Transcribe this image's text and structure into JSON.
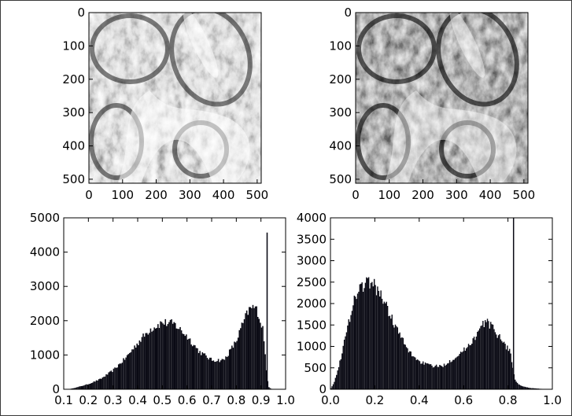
{
  "figure": {
    "background": "#ffffff",
    "frame_color": "#3a3a3a"
  },
  "images": [
    {
      "name": "original-tissue-image",
      "description_shown": false,
      "xlim": [
        0,
        512
      ],
      "ylim": [
        512,
        0
      ],
      "xticks": [
        "0",
        "100",
        "200",
        "300",
        "400",
        "500"
      ],
      "yticks": [
        "0",
        "100",
        "200",
        "300",
        "400",
        "500"
      ],
      "colormap": "gray"
    },
    {
      "name": "processed-tissue-image",
      "xlim": [
        0,
        512
      ],
      "ylim": [
        512,
        0
      ],
      "xticks": [
        "0",
        "100",
        "200",
        "300",
        "400",
        "500"
      ],
      "yticks": [
        "0",
        "100",
        "200",
        "300",
        "400",
        "500"
      ],
      "colormap": "gray"
    }
  ],
  "chart_data": [
    {
      "type": "bar",
      "name": "histogram-left",
      "xlim": [
        0.1,
        1.0
      ],
      "ylim": [
        0,
        5000
      ],
      "xticks": [
        "0.1",
        "0.2",
        "0.3",
        "0.4",
        "0.5",
        "0.6",
        "0.7",
        "0.8",
        "0.9",
        "1.0"
      ],
      "yticks": [
        "0",
        "1000",
        "2000",
        "3000",
        "4000",
        "5000"
      ],
      "bar_color": "#0a0a14",
      "bin_width": 0.005,
      "envelope_x": [
        0.12,
        0.15,
        0.2,
        0.25,
        0.3,
        0.35,
        0.4,
        0.45,
        0.5,
        0.55,
        0.6,
        0.65,
        0.7,
        0.75,
        0.8,
        0.82,
        0.85,
        0.87,
        0.89,
        0.9,
        0.91,
        0.92,
        0.93,
        0.94,
        0.95,
        1.0
      ],
      "envelope_y": [
        0,
        50,
        150,
        300,
        550,
        900,
        1350,
        1750,
        1950,
        1900,
        1550,
        1100,
        850,
        850,
        1400,
        1800,
        2300,
        2400,
        2250,
        1900,
        1750,
        700,
        80,
        20,
        0,
        0
      ],
      "spike": {
        "x": 0.925,
        "y": 4570
      }
    },
    {
      "type": "bar",
      "name": "histogram-right",
      "xlim": [
        0.0,
        1.0
      ],
      "ylim": [
        0,
        4000
      ],
      "xticks": [
        "0.0",
        "0.2",
        "0.4",
        "0.6",
        "0.8",
        "1.0"
      ],
      "yticks": [
        "0",
        "500",
        "1000",
        "1500",
        "2000",
        "2500",
        "3000",
        "3500",
        "4000"
      ],
      "bar_color": "#0a0a14",
      "bin_width": 0.005,
      "envelope_x": [
        0.0,
        0.02,
        0.05,
        0.08,
        0.1,
        0.13,
        0.15,
        0.18,
        0.2,
        0.23,
        0.25,
        0.3,
        0.35,
        0.4,
        0.45,
        0.5,
        0.55,
        0.6,
        0.65,
        0.68,
        0.7,
        0.72,
        0.75,
        0.77,
        0.79,
        0.81,
        0.82,
        0.83,
        0.84,
        0.86,
        0.88,
        0.9,
        0.95,
        1.0
      ],
      "envelope_y": [
        0,
        200,
        800,
        1500,
        2000,
        2350,
        2450,
        2500,
        2400,
        2200,
        1950,
        1400,
        900,
        650,
        550,
        530,
        700,
        900,
        1200,
        1450,
        1600,
        1500,
        1300,
        1200,
        1000,
        900,
        600,
        250,
        150,
        80,
        50,
        30,
        10,
        0
      ],
      "spike": {
        "x": 0.825,
        "y": 4000
      }
    }
  ]
}
